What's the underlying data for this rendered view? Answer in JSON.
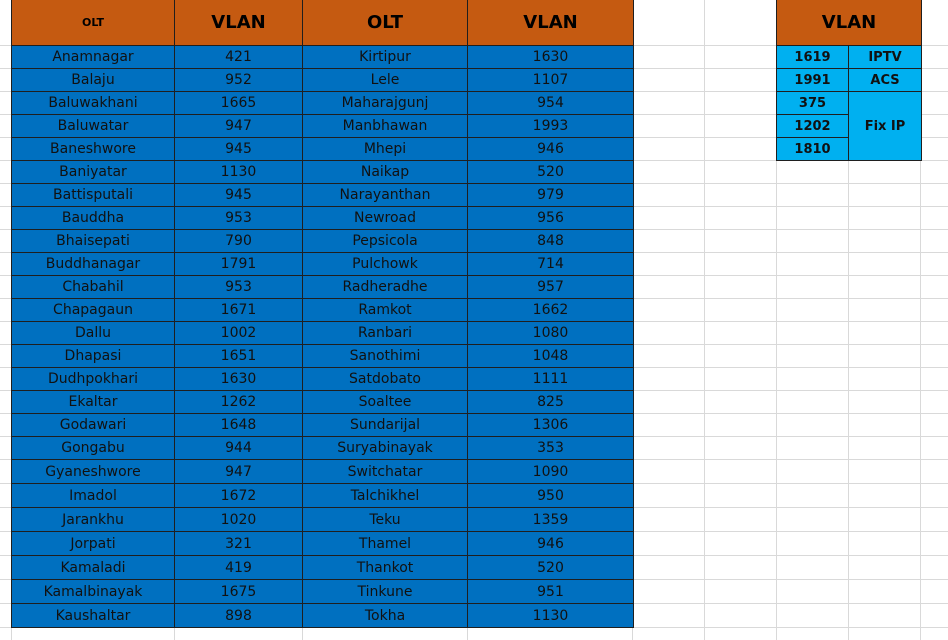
{
  "main_table": {
    "headers": [
      "OLT",
      "VLAN",
      "OLT",
      "VLAN"
    ],
    "rows": [
      [
        "Anamnagar",
        "421",
        "Kirtipur",
        "1630"
      ],
      [
        "Balaju",
        "952",
        "Lele",
        "1107"
      ],
      [
        "Baluwakhani",
        "1665",
        "Maharajgunj",
        "954"
      ],
      [
        "Baluwatar",
        "947",
        "Manbhawan",
        "1993"
      ],
      [
        "Baneshwore",
        "945",
        "Mhepi",
        "946"
      ],
      [
        "Baniyatar",
        "1130",
        "Naikap",
        "520"
      ],
      [
        "Battisputali",
        "945",
        "Narayanthan",
        "979"
      ],
      [
        "Bauddha",
        "953",
        "Newroad",
        "956"
      ],
      [
        "Bhaisepati",
        "790",
        "Pepsicola",
        "848"
      ],
      [
        "Buddhanagar",
        "1791",
        "Pulchowk",
        "714"
      ],
      [
        "Chabahil",
        "953",
        "Radheradhe",
        "957"
      ],
      [
        "Chapagaun",
        "1671",
        "Ramkot",
        "1662"
      ],
      [
        "Dallu",
        "1002",
        "Ranbari",
        "1080"
      ],
      [
        "Dhapasi",
        "1651",
        "Sanothimi",
        "1048"
      ],
      [
        "Dudhpokhari",
        "1630",
        "Satdobato",
        "1111"
      ],
      [
        "Ekaltar",
        "1262",
        "Soaltee",
        "825"
      ],
      [
        "Godawari",
        "1648",
        "Sundarijal",
        "1306"
      ],
      [
        "Gongabu",
        "944",
        "Suryabinayak",
        "353"
      ],
      [
        "Gyaneshwore",
        "947",
        "Switchatar",
        "1090"
      ],
      [
        "Imadol",
        "1672",
        "Talchikhel",
        "950"
      ],
      [
        "Jarankhu",
        "1020",
        "Teku",
        "1359"
      ],
      [
        "Jorpati",
        "321",
        "Thamel",
        "946"
      ],
      [
        "Kamaladi",
        "419",
        "Thankot",
        "520"
      ],
      [
        "Kamalbinayak",
        "1675",
        "Tinkune",
        "951"
      ],
      [
        "Kaushaltar",
        "898",
        "Tokha",
        "1130"
      ]
    ]
  },
  "side_table": {
    "header": "VLAN",
    "rows": [
      {
        "vlan": "1619",
        "label": "IPTV"
      },
      {
        "vlan": "1991",
        "label": "ACS"
      },
      {
        "vlan": "375",
        "label": "Fix IP"
      },
      {
        "vlan": "1202",
        "label": ""
      },
      {
        "vlan": "1810",
        "label": ""
      }
    ]
  }
}
